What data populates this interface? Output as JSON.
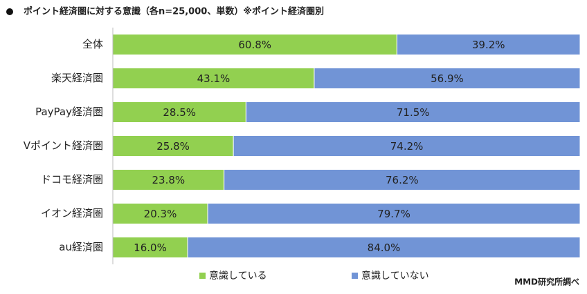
{
  "chart_data": {
    "type": "stacked-bar-horizontal",
    "title": "ポイント経済圏に対する意識（各n=25,000、単数）※ポイント経済圏別",
    "source": "MMD研究所調べ",
    "categories": [
      "全体",
      "楽天経済圏",
      "PayPay経済圏",
      "Vポイント経済圏",
      "ドコモ経済圏",
      "イオン経済圏",
      "au経済圏"
    ],
    "xlim": [
      0,
      100
    ],
    "series": [
      {
        "name": "意識している",
        "color": "#92d050",
        "values": [
          60.8,
          43.1,
          28.5,
          25.8,
          23.8,
          20.3,
          16.0
        ],
        "value_labels": [
          "60.8%",
          "43.1%",
          "28.5%",
          "25.8%",
          "23.8%",
          "20.3%",
          "16.0%"
        ]
      },
      {
        "name": "意識していない",
        "color": "#7194d6",
        "values": [
          39.2,
          56.9,
          71.5,
          74.2,
          76.2,
          79.7,
          84.0
        ],
        "value_labels": [
          "39.2%",
          "56.9%",
          "71.5%",
          "74.2%",
          "76.2%",
          "79.7%",
          "84.0%"
        ]
      }
    ]
  }
}
